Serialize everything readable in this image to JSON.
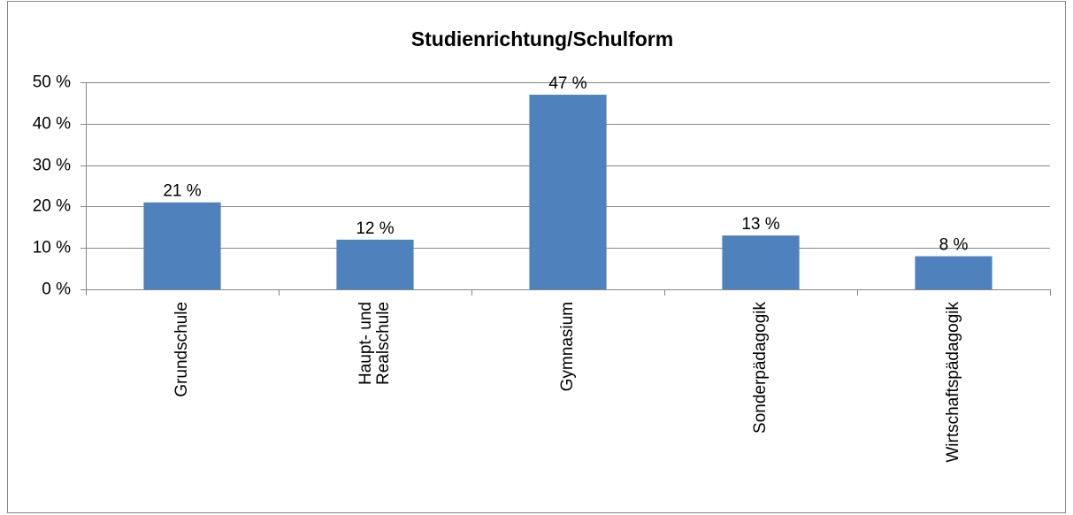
{
  "chart_data": {
    "type": "bar",
    "title": "Studienrichtung/Schulform",
    "categories": [
      "Grundschule",
      "Haupt- und\nRealschule",
      "Gymnasium",
      "Sonderpädagogik",
      "Wirtschaftspädagogik"
    ],
    "values": [
      21,
      12,
      47,
      13,
      8
    ],
    "value_labels": [
      "21 %",
      "12 %",
      "47 %",
      "13 %",
      "8 %"
    ],
    "color": "#4f81bd",
    "ylim": [
      0,
      50
    ],
    "yticks": [
      {
        "value": 0,
        "label": "0 %"
      },
      {
        "value": 10,
        "label": "10 %"
      },
      {
        "value": 20,
        "label": "20 %"
      },
      {
        "value": 30,
        "label": "30 %"
      },
      {
        "value": 40,
        "label": "40 %"
      },
      {
        "value": 50,
        "label": "50 %"
      }
    ],
    "grid": true
  }
}
